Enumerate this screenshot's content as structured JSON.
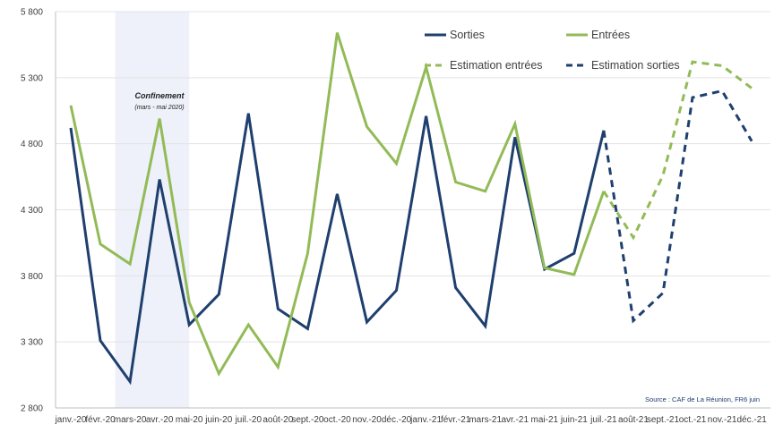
{
  "chart_data": {
    "type": "line",
    "categories": [
      "janv.-20",
      "févr.-20",
      "mars-20",
      "avr.-20",
      "mai-20",
      "juin-20",
      "juil.-20",
      "août-20",
      "sept.-20",
      "oct.-20",
      "nov.-20",
      "déc.-20",
      "janv.-21",
      "févr.-21",
      "mars-21",
      "avr.-21",
      "mai-21",
      "juin-21",
      "juil.-21",
      "août-21",
      "sept.-21",
      "oct.-21",
      "nov.-21",
      "déc.-21"
    ],
    "yticks": [
      2800,
      3300,
      3800,
      4300,
      4800,
      5300,
      5800
    ],
    "ytick_labels": [
      "2 800",
      "3 300",
      "3 800",
      "4 300",
      "4 800",
      "5 300",
      "5 800"
    ],
    "ylim": [
      2800,
      5800
    ],
    "grid": true,
    "legend_position": "top-right",
    "series": [
      {
        "name": "Sorties",
        "color": "#1f3f6e",
        "dashed": false,
        "values": [
          4920,
          3310,
          3000,
          4530,
          3430,
          3660,
          5030,
          3550,
          3400,
          4420,
          3450,
          3690,
          5010,
          3710,
          3420,
          4850,
          3850,
          3970,
          4900,
          null,
          null,
          null,
          null,
          null
        ]
      },
      {
        "name": "Entrées",
        "color": "#92bb57",
        "dashed": false,
        "values": [
          5090,
          4040,
          3890,
          4990,
          3600,
          3060,
          3430,
          3110,
          3970,
          5640,
          4930,
          4650,
          5380,
          4510,
          4440,
          4950,
          3860,
          3810,
          4440,
          null,
          null,
          null,
          null,
          null
        ]
      },
      {
        "name": "Estimation entrées",
        "color": "#92bb57",
        "dashed": true,
        "values": [
          null,
          null,
          null,
          null,
          null,
          null,
          null,
          null,
          null,
          null,
          null,
          null,
          null,
          null,
          null,
          null,
          null,
          null,
          4440,
          4090,
          4560,
          5420,
          5390,
          5220
        ]
      },
      {
        "name": "Estimation sorties",
        "color": "#1f3f6e",
        "dashed": true,
        "values": [
          null,
          null,
          null,
          null,
          null,
          null,
          null,
          null,
          null,
          null,
          null,
          null,
          null,
          null,
          null,
          null,
          null,
          null,
          4900,
          3460,
          3670,
          5150,
          5200,
          4820
        ]
      }
    ],
    "shaded_region": {
      "from": "mars-20",
      "to": "mai-20",
      "color": "#eef1f9"
    },
    "annotations": [
      {
        "text": "Confinement",
        "subtext": "(mars - mai 2020)"
      },
      {
        "text": "Source : CAF de La Réunion, FR6 juin"
      }
    ]
  }
}
